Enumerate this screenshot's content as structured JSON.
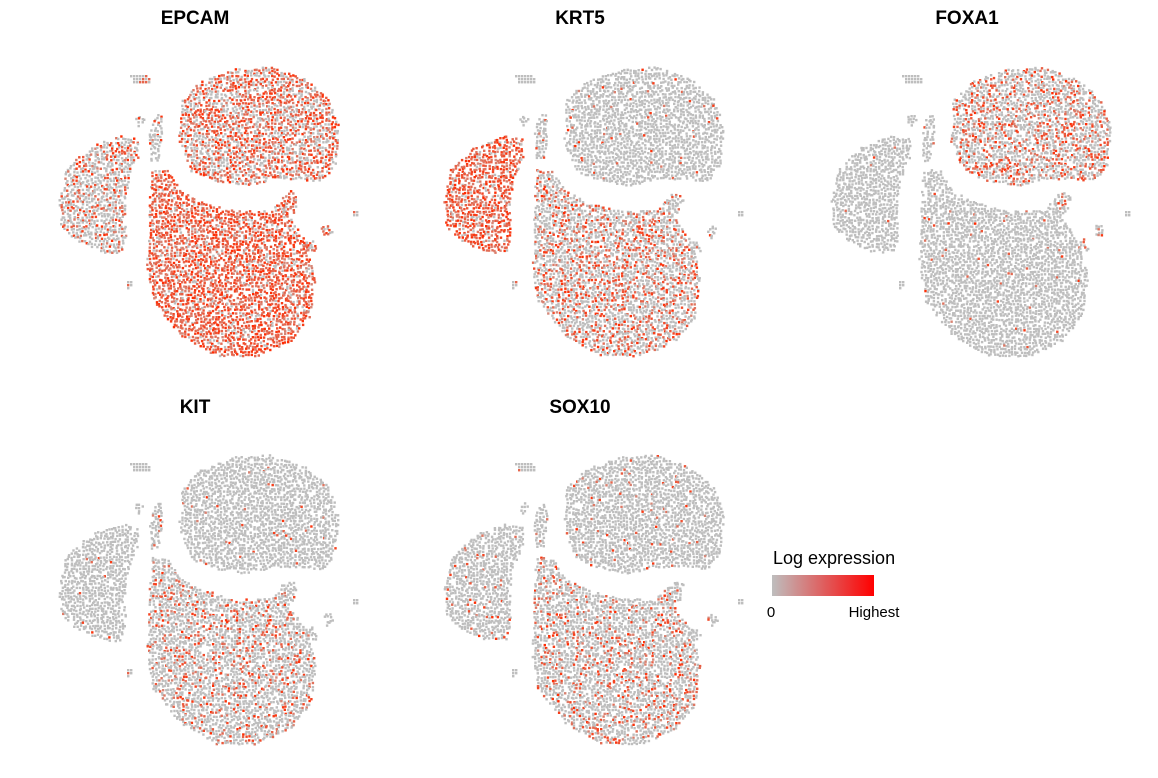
{
  "chart_data": {
    "type": "scatter",
    "panels": [
      {
        "title": "EPCAM",
        "expression": {
          "left_lobe": 0.3,
          "top_cluster": 0.55,
          "bottom_cluster": 0.85,
          "islands": 0.7,
          "small_bits": 0.2
        }
      },
      {
        "title": "KRT5",
        "expression": {
          "left_lobe": 0.9,
          "top_cluster": 0.03,
          "bottom_cluster": 0.35,
          "islands": 0.15,
          "small_bits": 0.05
        }
      },
      {
        "title": "FOXA1",
        "expression": {
          "left_lobe": 0.01,
          "top_cluster": 0.35,
          "bottom_cluster": 0.02,
          "islands": 0.25,
          "small_bits": 0.02
        }
      },
      {
        "title": "KIT",
        "expression": {
          "left_lobe": 0.02,
          "top_cluster": 0.02,
          "bottom_cluster": 0.22,
          "islands": 0.08,
          "small_bits": 0.05
        }
      },
      {
        "title": "SOX10",
        "expression": {
          "left_lobe": 0.06,
          "top_cluster": 0.04,
          "bottom_cluster": 0.25,
          "islands": 0.1,
          "small_bits": 0.05
        }
      }
    ],
    "legend": {
      "title": "Log expression",
      "low_label": "0",
      "high_label": "Highest",
      "low_color": "#bebebe",
      "high_color": "#ff0000",
      "placement": "bottom-right"
    },
    "point_color_low": "#bebebe",
    "point_color_high": "#ff2a00",
    "grid": false,
    "axes": false
  }
}
